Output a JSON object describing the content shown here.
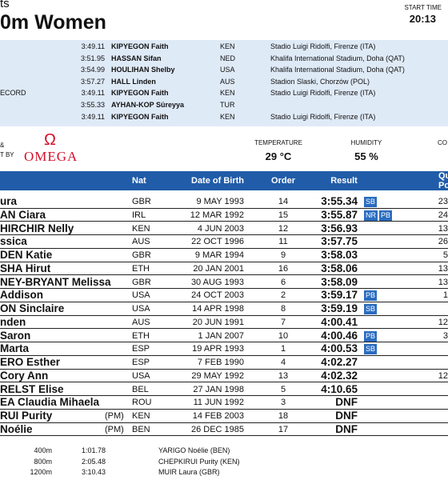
{
  "header": {
    "title_fragment": "ts",
    "title": "0m Women",
    "start_time_label": "START TIME",
    "start_time": "20:13"
  },
  "records": [
    {
      "label": null,
      "time": "3:49.11",
      "name": "KIPYEGON Faith",
      "nat": "KEN",
      "venue": "Stadio Luigi Ridolfi, Firenze (ITA)"
    },
    {
      "label": null,
      "time": "3:51.95",
      "name": "HASSAN Sifan",
      "nat": "NED",
      "venue": "Khalifa International Stadium, Doha (QAT)"
    },
    {
      "label": null,
      "time": "3:54.99",
      "name": "HOULIHAN Shelby",
      "nat": "USA",
      "venue": "Khalifa International Stadium, Doha (QAT)"
    },
    {
      "label": null,
      "time": "3:57.27",
      "name": "HALL Linden",
      "nat": "AUS",
      "venue": "Stadion Slaski, Chorzów (POL)"
    },
    {
      "label": "ECORD",
      "time": "3:49.11",
      "name": "KIPYEGON Faith",
      "nat": "KEN",
      "venue": "Stadio Luigi Ridolfi, Firenze (ITA)"
    },
    {
      "label": null,
      "time": "3:55.33",
      "name": "AYHAN-KOP Süreyya",
      "nat": "TUR",
      "venue": null
    },
    {
      "label": null,
      "time": "3:49.11",
      "name": "KIPYEGON Faith",
      "nat": "KEN",
      "venue": "Stadio Luigi Ridolfi, Firenze (ITA)"
    }
  ],
  "weather": {
    "sponsor_label_1": "&",
    "sponsor_label_2": "T BY",
    "logo_symbol": "Ω",
    "sponsor": "OMEGA",
    "temperature_label": "TEMPERATURE",
    "temperature": "29 °C",
    "humidity_label": "HUMIDITY",
    "humidity": "55 %",
    "cropped_label": "CO"
  },
  "table": {
    "columns": [
      "Nat",
      "Date of Birth",
      "Order",
      "Result"
    ],
    "corner_1": "Qu",
    "corner_2": "Po",
    "rows": [
      {
        "name": "ura",
        "pm": null,
        "nat": "GBR",
        "dob": "9 MAY 1993",
        "order": 14,
        "result": "3:55.34",
        "badges": [
          "SB"
        ],
        "points": 23
      },
      {
        "name": "AN Ciara",
        "pm": null,
        "nat": "IRL",
        "dob": "12 MAR 1992",
        "order": 15,
        "result": "3:55.87",
        "badges": [
          "NR",
          "PB"
        ],
        "points": 24
      },
      {
        "name": "HIRCHIR Nelly",
        "pm": null,
        "nat": "KEN",
        "dob": "4 JUN 2003",
        "order": 12,
        "result": "3:56.93",
        "badges": [],
        "points": 13
      },
      {
        "name": "ssica",
        "pm": null,
        "nat": "AUS",
        "dob": "22 OCT 1996",
        "order": 11,
        "result": "3:57.75",
        "badges": [],
        "points": 26
      },
      {
        "name": "DEN Katie",
        "pm": null,
        "nat": "GBR",
        "dob": "9 MAR 1994",
        "order": 9,
        "result": "3:58.03",
        "badges": [],
        "points": 5
      },
      {
        "name": "SHA Hirut",
        "pm": null,
        "nat": "ETH",
        "dob": "20 JAN 2001",
        "order": 16,
        "result": "3:58.06",
        "badges": [],
        "points": 13
      },
      {
        "name": "NEY-BRYANT Melissa",
        "pm": null,
        "nat": "GBR",
        "dob": "30 AUG 1993",
        "order": 6,
        "result": "3:58.09",
        "badges": [],
        "points": 13
      },
      {
        "name": "Addison",
        "pm": null,
        "nat": "USA",
        "dob": "24 OCT 2003",
        "order": 2,
        "result": "3:59.17",
        "badges": [
          "PB"
        ],
        "points": 1
      },
      {
        "name": "ON Sinclaire",
        "pm": null,
        "nat": "USA",
        "dob": "14 APR 1998",
        "order": 8,
        "result": "3:59.19",
        "badges": [
          "SB"
        ],
        "points": null
      },
      {
        "name": "nden",
        "pm": null,
        "nat": "AUS",
        "dob": "20 JUN 1991",
        "order": 7,
        "result": "4:00.41",
        "badges": [],
        "points": 12
      },
      {
        "name": "Saron",
        "pm": null,
        "nat": "ETH",
        "dob": "1 JAN 2007",
        "order": 10,
        "result": "4:00.46",
        "badges": [
          "PB"
        ],
        "points": 3
      },
      {
        "name": "Marta",
        "pm": null,
        "nat": "ESP",
        "dob": "19 APR 1993",
        "order": 1,
        "result": "4:00.53",
        "badges": [
          "SB"
        ],
        "points": null
      },
      {
        "name": "ERO Esther",
        "pm": null,
        "nat": "ESP",
        "dob": "7 FEB 1990",
        "order": 4,
        "result": "4:02.27",
        "badges": [],
        "points": null
      },
      {
        "name": "Cory Ann",
        "pm": null,
        "nat": "USA",
        "dob": "29 MAY 1992",
        "order": 13,
        "result": "4:02.32",
        "badges": [],
        "points": 12
      },
      {
        "name": "RELST Elise",
        "pm": null,
        "nat": "BEL",
        "dob": "27 JAN 1998",
        "order": 5,
        "result": "4:10.65",
        "badges": [],
        "points": null
      },
      {
        "name": "EA Claudia Mihaela",
        "pm": null,
        "nat": "ROU",
        "dob": "11 JUN 1992",
        "order": 3,
        "result": "DNF",
        "badges": [],
        "points": null
      },
      {
        "name": "RUI Purity",
        "pm": "(PM)",
        "nat": "KEN",
        "dob": "14 FEB 2003",
        "order": 18,
        "result": "DNF",
        "badges": [],
        "points": null
      },
      {
        "name": "Noélie",
        "pm": "(PM)",
        "nat": "BEN",
        "dob": "26 DEC 1985",
        "order": 17,
        "result": "DNF",
        "badges": [],
        "points": null
      }
    ]
  },
  "splits": [
    {
      "distance": "400m",
      "time": "1:01.78",
      "leader": "YARIGO Noélie (BEN)"
    },
    {
      "distance": "800m",
      "time": "2:05.48",
      "leader": "CHEPKIRUI Purity (KEN)"
    },
    {
      "distance": "1200m",
      "time": "3:10.43",
      "leader": "MUIR Laura (GBR)"
    }
  ]
}
